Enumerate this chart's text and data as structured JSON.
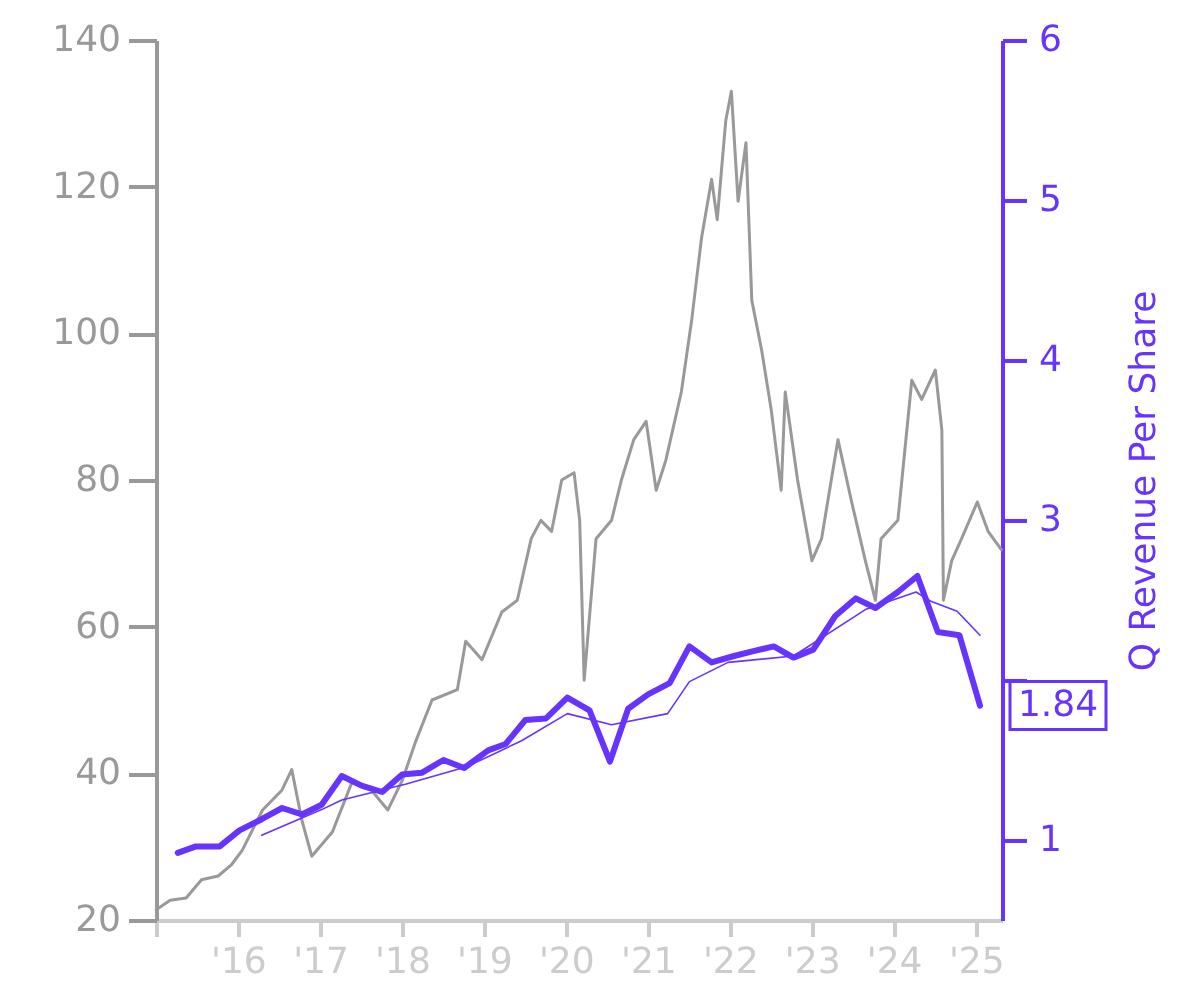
{
  "chart_data": {
    "type": "line",
    "y2label": "Q Revenue Per Share",
    "xlim": [
      "2015-01-01",
      "2025-04-28"
    ],
    "xticks": [
      {
        "value": "2015-01-01",
        "label": null
      },
      {
        "value": "2016-01-01",
        "label": "'16"
      },
      {
        "value": "2017-01-01",
        "label": "'17"
      },
      {
        "value": "2018-01-01",
        "label": "'18"
      },
      {
        "value": "2019-01-01",
        "label": "'19"
      },
      {
        "value": "2020-01-01",
        "label": "'20"
      },
      {
        "value": "2021-01-01",
        "label": "'21"
      },
      {
        "value": "2022-01-01",
        "label": "'22"
      },
      {
        "value": "2023-01-01",
        "label": "'23"
      },
      {
        "value": "2024-01-01",
        "label": "'24"
      },
      {
        "value": "2025-01-01",
        "label": "'25"
      }
    ],
    "ylim": [
      20,
      140
    ],
    "yticks": [
      20,
      40,
      60,
      80,
      100,
      120,
      140
    ],
    "y2lim": [
      0.5,
      6
    ],
    "y2ticks": [
      1,
      {
        "value": 2,
        "label": null
      },
      3,
      4,
      5,
      6
    ],
    "grid": false,
    "series": [
      {
        "color": "#999999",
        "axis": "y",
        "x": [
          "2015-01-02",
          "2015-03-05",
          "2015-05-15",
          "2015-07-23",
          "2015-10-05",
          "2015-12-05",
          "2016-01-20",
          "2016-04-20",
          "2016-07-15",
          "2016-08-28",
          "2016-10-12",
          "2016-11-25",
          "2017-02-25",
          "2017-05-26",
          "2017-08-18",
          "2017-10-30",
          "2018-01-02",
          "2018-03-05",
          "2018-05-15",
          "2018-09-05",
          "2018-10-12",
          "2018-12-24",
          "2019-03-22",
          "2019-05-30",
          "2019-07-31",
          "2019-09-12",
          "2019-10-30",
          "2019-12-14",
          "2020-02-07",
          "2020-03-03",
          "2020-03-23",
          "2020-05-15",
          "2020-07-23",
          "2020-09-05",
          "2020-10-30",
          "2020-12-24",
          "2021-02-07",
          "2021-03-22",
          "2021-05-30",
          "2021-07-16",
          "2021-08-28",
          "2021-10-12",
          "2021-11-06",
          "2021-12-14",
          "2022-01-08",
          "2022-02-07",
          "2022-03-14",
          "2022-04-09",
          "2022-05-23",
          "2022-07-05",
          "2022-08-18",
          "2022-09-05",
          "2022-10-30",
          "2023-01-02",
          "2023-02-14",
          "2023-04-28",
          "2023-06-28",
          "2023-08-28",
          "2023-10-12",
          "2023-11-06",
          "2024-01-20",
          "2024-03-22",
          "2024-05-05",
          "2024-07-05",
          "2024-08-03",
          "2024-08-10",
          "2024-09-16",
          "2024-10-30",
          "2025-01-08",
          "2025-02-25",
          "2025-04-25"
        ],
        "values": [
          21.4,
          22.7,
          23,
          25.5,
          26,
          27.6,
          29.5,
          35,
          37.7,
          40.5,
          33.6,
          28.7,
          32,
          39,
          37.7,
          35,
          39,
          44.5,
          50,
          51.4,
          58,
          55.5,
          62,
          63.6,
          72,
          74.5,
          73,
          80,
          81,
          74.5,
          52.7,
          72,
          74.5,
          80,
          85.5,
          88,
          78.6,
          82.7,
          92,
          102,
          113,
          121,
          115.5,
          129,
          133,
          118,
          126,
          104.5,
          97.7,
          89.5,
          78.6,
          92,
          80,
          69,
          72,
          85.5,
          77,
          69,
          63.6,
          72,
          74.5,
          93.6,
          91,
          95,
          86.8,
          63.6,
          69,
          72,
          77,
          73,
          70.5
        ]
      },
      {
        "color": "#6633ff",
        "axis": "y2",
        "x": [
          "2015-04-08",
          "2015-06-28",
          "2015-10-12",
          "2016-01-08",
          "2016-04-16",
          "2016-07-16",
          "2016-10-12",
          "2017-01-08",
          "2017-04-08",
          "2017-07-05",
          "2017-10-05",
          "2018-01-02",
          "2018-03-30",
          "2018-07-05",
          "2018-10-05",
          "2019-01-20",
          "2019-04-08",
          "2019-07-05",
          "2019-10-05",
          "2020-01-08",
          "2020-04-16",
          "2020-07-16",
          "2020-10-05",
          "2021-01-02",
          "2021-04-08",
          "2021-07-05",
          "2021-10-12",
          "2022-01-20",
          "2022-04-16",
          "2022-07-16",
          "2022-10-12",
          "2023-01-08",
          "2023-04-16",
          "2023-07-16",
          "2023-10-12",
          "2024-01-20",
          "2024-04-16",
          "2024-07-16",
          "2024-10-20",
          "2025-01-20"
        ],
        "values": [
          0.92,
          0.96,
          0.96,
          1.06,
          1.13,
          1.2,
          1.16,
          1.22,
          1.4,
          1.34,
          1.3,
          1.41,
          1.42,
          1.5,
          1.45,
          1.56,
          1.6,
          1.75,
          1.76,
          1.89,
          1.81,
          1.49,
          1.82,
          1.91,
          1.98,
          2.21,
          2.11,
          2.15,
          2.18,
          2.21,
          2.14,
          2.19,
          2.4,
          2.51,
          2.45,
          2.55,
          2.65,
          2.3,
          2.28,
          1.84
        ],
        "value_labels": [
          null,
          null,
          null,
          null,
          null,
          null,
          null,
          null,
          null,
          null,
          null,
          null,
          null,
          null,
          null,
          null,
          null,
          null,
          null,
          null,
          null,
          null,
          null,
          null,
          null,
          null,
          null,
          null,
          null,
          null,
          null,
          null,
          null,
          null,
          null,
          null,
          null,
          null,
          null,
          "1.84"
        ]
      },
      {
        "color": "#6633ff",
        "axis": "y2",
        "x": [
          "2016-04-16",
          "2017-01-08",
          "2017-04-08",
          "2018-01-20",
          "2018-10-20",
          "2019-06-18",
          "2020-01-08",
          "2020-07-23",
          "2021-03-30",
          "2021-07-05",
          "2021-12-24",
          "2022-10-12",
          "2023-08-28",
          "2024-04-10",
          "2024-06-18",
          "2024-10-10",
          "2025-01-20"
        ],
        "values": [
          1.03,
          1.19,
          1.25,
          1.35,
          1.46,
          1.62,
          1.79,
          1.72,
          1.79,
          1.99,
          2.11,
          2.15,
          2.44,
          2.55,
          2.49,
          2.43,
          2.28
        ]
      }
    ]
  }
}
